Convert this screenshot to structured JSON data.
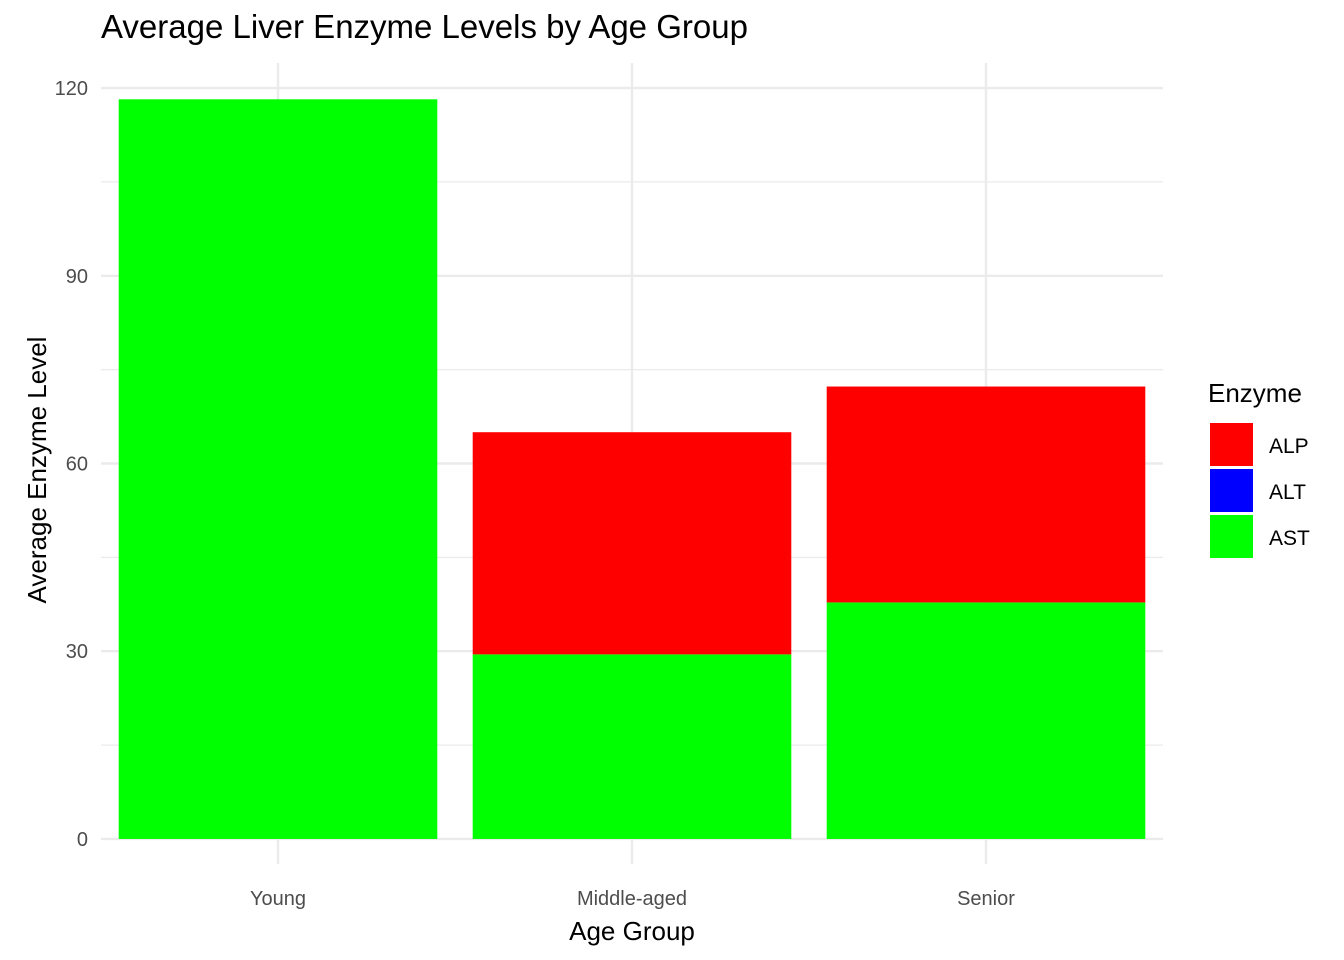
{
  "chart_data": {
    "type": "bar",
    "stacked": true,
    "title": "Average Liver Enzyme Levels by Age Group",
    "xlabel": "Age Group",
    "ylabel": "Average Enzyme Level",
    "categories": [
      "Young",
      "Middle-aged",
      "Senior"
    ],
    "ylim": [
      -4,
      124
    ],
    "yticks": [
      0,
      30,
      60,
      90,
      120
    ],
    "grid": true,
    "legend": {
      "title": "Enzyme",
      "placement": "right"
    },
    "series": [
      {
        "name": "ALP",
        "color": "#ff0000",
        "values": [
          0,
          35.5,
          34.5
        ]
      },
      {
        "name": "ALT",
        "color": "#0000ff",
        "values": [
          0,
          0,
          0
        ]
      },
      {
        "name": "AST",
        "color": "#00ff00",
        "values": [
          118.2,
          29.5,
          37.8
        ]
      }
    ]
  }
}
